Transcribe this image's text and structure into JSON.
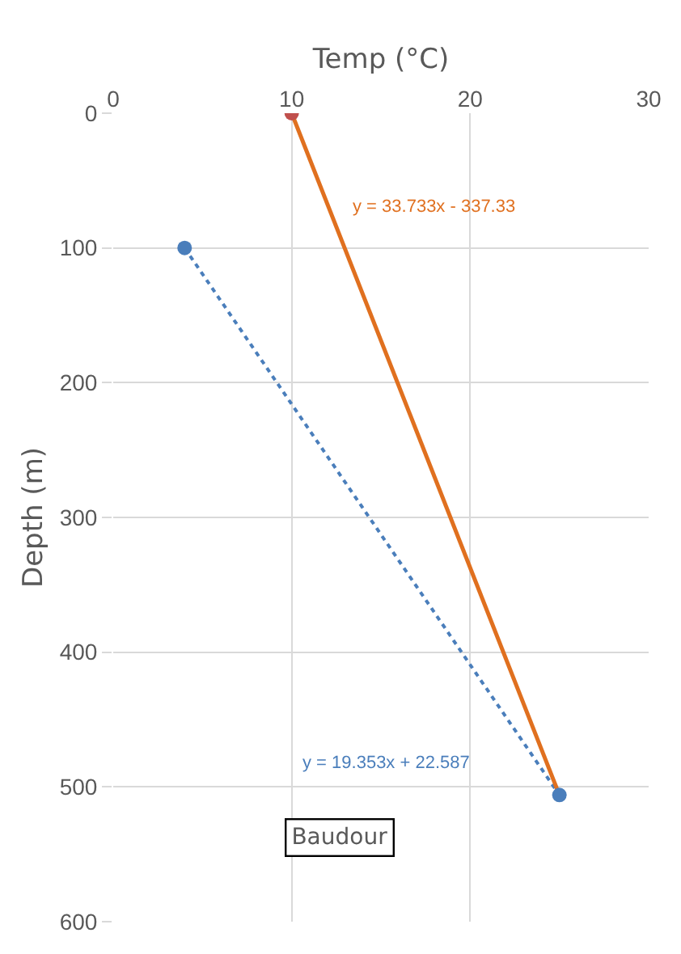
{
  "chart_data": {
    "type": "scatter",
    "xlabel": "Temp (°C)",
    "ylabel": "Depth (m)",
    "xlim": [
      0,
      30
    ],
    "xticks": [
      0,
      10,
      20,
      30
    ],
    "ylim": [
      600,
      0
    ],
    "yticks": [
      0,
      100,
      200,
      300,
      400,
      500,
      600
    ],
    "grid": true,
    "series": [
      {
        "type": "line",
        "x": [
          4,
          25
        ],
        "values": [
          100,
          506
        ],
        "color": "#4a7ebb",
        "line_style": "dotted"
      },
      {
        "type": "line",
        "x": [
          10,
          25
        ],
        "values": [
          0,
          506
        ],
        "color": "#e0701f",
        "line_style": "solid"
      },
      {
        "x": [
          4,
          25
        ],
        "values": [
          100,
          506
        ],
        "color": "#4a7ebb",
        "marker": "circle"
      },
      {
        "x": [
          10
        ],
        "values": [
          0
        ],
        "color": "#c0504d",
        "marker": "circle"
      }
    ],
    "annotations": [
      "y = 33.733x - 337.33",
      "y = 19.353x + 22.587",
      "Baudour"
    ]
  }
}
